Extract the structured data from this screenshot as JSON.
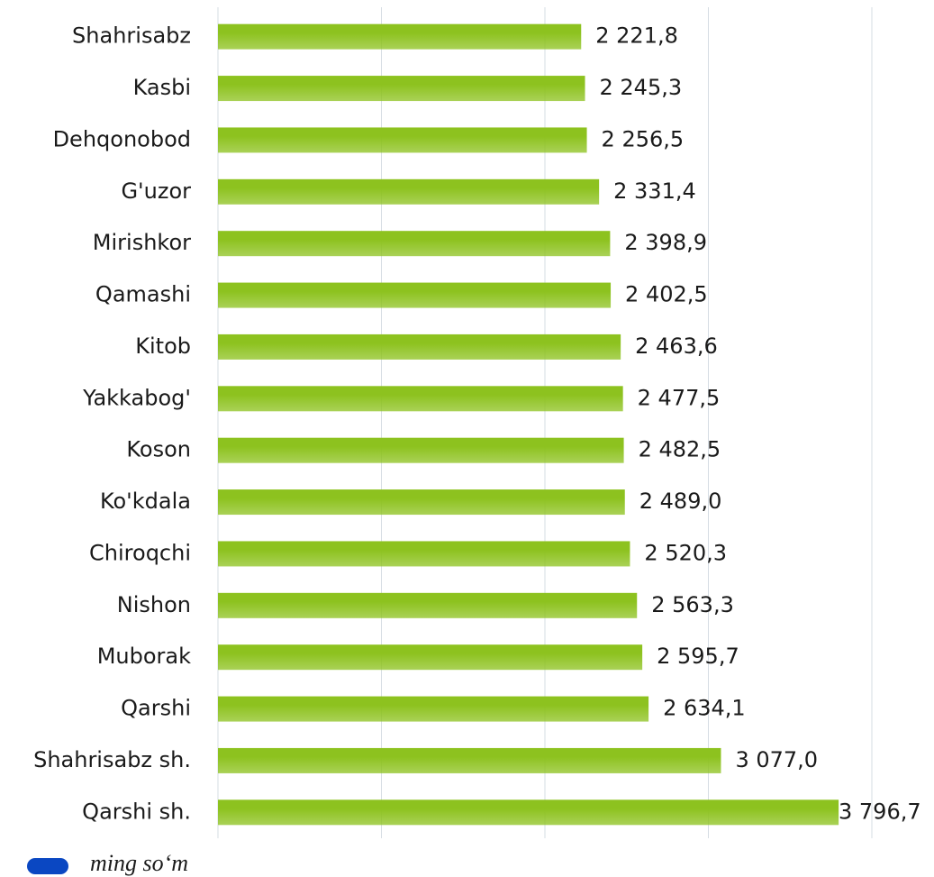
{
  "chart_data": {
    "type": "hbar",
    "categories": [
      "Shahrisabz",
      "Kasbi",
      "Dehqonobod",
      "G'uzor",
      "Mirishkor",
      "Qamashi",
      "Kitob",
      "Yakkabog'",
      "Koson",
      "Ko'kdala",
      "Chiroqchi",
      "Nishon",
      "Muborak",
      "Qarshi",
      "Shahrisabz sh.",
      "Qarshi sh."
    ],
    "series": [
      {
        "name": "ming so‘m",
        "color": "#8dc21f",
        "legend_color": "#0a47c2",
        "values": [
          2221.8,
          2245.3,
          2256.5,
          2331.4,
          2398.9,
          2402.5,
          2463.6,
          2477.5,
          2482.5,
          2489.0,
          2520.3,
          2563.3,
          2595.7,
          2634.1,
          3077.0,
          3796.7
        ],
        "value_labels": [
          "2 221,8",
          "2 245,3",
          "2 256,5",
          "2 331,4",
          "2 398,9",
          "2 402,5",
          "2 463,6",
          "2 477,5",
          "2 482,5",
          "2 489,0",
          "2 520,3",
          "2 563,3",
          "2 595,7",
          "2 634,1",
          "3 077,0",
          "3 796,7"
        ]
      }
    ],
    "xlim": [
      0,
      4000
    ],
    "xticks": [
      0,
      1000,
      2000,
      3000,
      4000
    ],
    "grid": true
  }
}
